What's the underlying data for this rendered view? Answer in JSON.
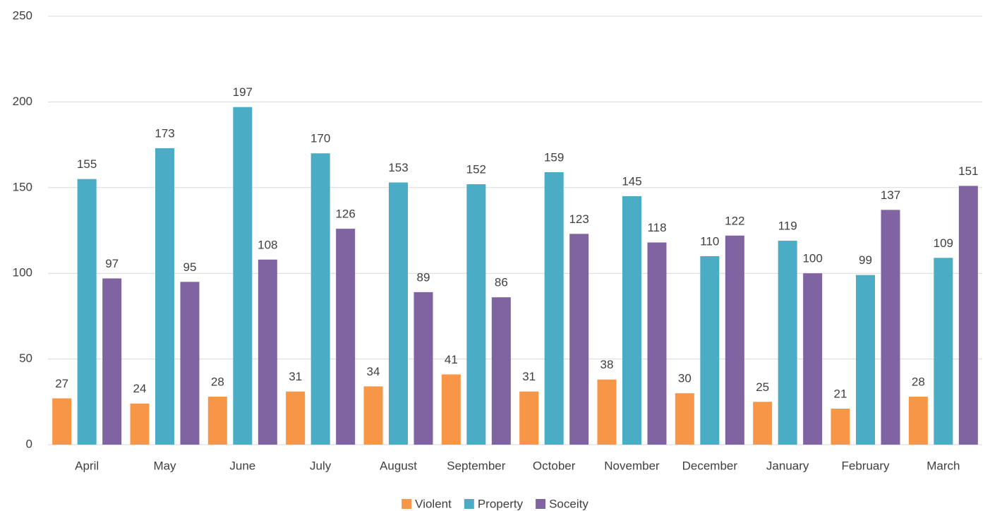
{
  "chart_data": {
    "type": "bar",
    "categories": [
      "April",
      "May",
      "June",
      "July",
      "August",
      "September",
      "October",
      "November",
      "December",
      "January",
      "February",
      "March"
    ],
    "series": [
      {
        "name": "Violent",
        "color": "#f79646",
        "values": [
          27,
          24,
          28,
          31,
          34,
          41,
          31,
          38,
          30,
          25,
          21,
          28
        ]
      },
      {
        "name": "Property",
        "color": "#4bacc6",
        "values": [
          155,
          173,
          197,
          170,
          153,
          152,
          159,
          145,
          110,
          119,
          99,
          109
        ]
      },
      {
        "name": "Soceity",
        "color": "#8064a2",
        "values": [
          97,
          95,
          108,
          126,
          89,
          86,
          123,
          118,
          122,
          100,
          137,
          151
        ]
      }
    ],
    "ylim": [
      0,
      250
    ],
    "yticks": [
      0,
      50,
      100,
      150,
      200,
      250
    ],
    "grid": true,
    "legend": "bottom"
  }
}
